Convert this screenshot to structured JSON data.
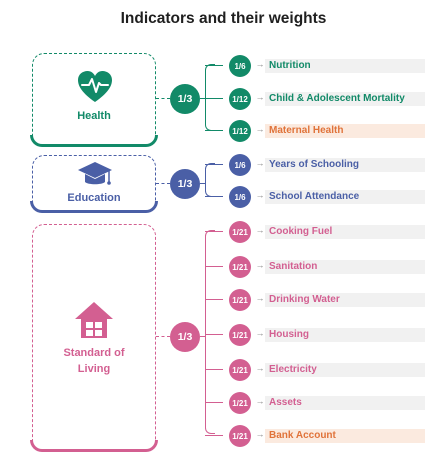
{
  "title": "Indicators and their weights",
  "colors": {
    "health": "#128a68",
    "education": "#4a5fa6",
    "living": "#d35f91",
    "deprived_text": "#e0733a"
  },
  "dimensions": [
    {
      "key": "health",
      "name": "Health",
      "weight": "1/3",
      "icon": "heart-pulse-icon"
    },
    {
      "key": "education",
      "name": "Education",
      "weight": "1/3",
      "icon": "graduation-cap-icon"
    },
    {
      "key": "living",
      "name": "Standard of Living",
      "weight": "1/3",
      "icon": "house-icon"
    }
  ],
  "indicators": [
    {
      "dimension": "health",
      "weight": "1/6",
      "name": "Nutrition",
      "highlight": false
    },
    {
      "dimension": "health",
      "weight": "1/12",
      "name": "Child & Adolescent Mortality",
      "highlight": false
    },
    {
      "dimension": "health",
      "weight": "1/12",
      "name": "Maternal Health",
      "highlight": true
    },
    {
      "dimension": "education",
      "weight": "1/6",
      "name": "Years of Schooling",
      "highlight": false
    },
    {
      "dimension": "education",
      "weight": "1/6",
      "name": "School Attendance",
      "highlight": false
    },
    {
      "dimension": "living",
      "weight": "1/21",
      "name": "Cooking Fuel",
      "highlight": false
    },
    {
      "dimension": "living",
      "weight": "1/21",
      "name": "Sanitation",
      "highlight": false
    },
    {
      "dimension": "living",
      "weight": "1/21",
      "name": "Drinking Water",
      "highlight": false
    },
    {
      "dimension": "living",
      "weight": "1/21",
      "name": "Housing",
      "highlight": false
    },
    {
      "dimension": "living",
      "weight": "1/21",
      "name": "Electricity",
      "highlight": false
    },
    {
      "dimension": "living",
      "weight": "1/21",
      "name": "Assets",
      "highlight": false
    },
    {
      "dimension": "living",
      "weight": "1/21",
      "name": "Bank Account",
      "highlight": true
    }
  ]
}
